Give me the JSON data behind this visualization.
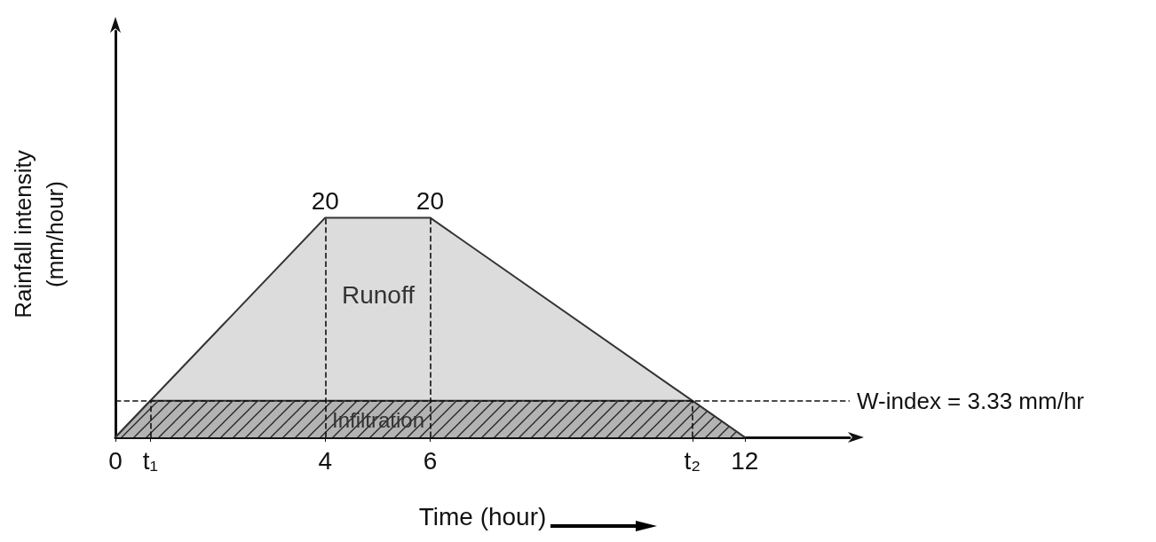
{
  "chart_data": {
    "type": "area",
    "xlabel": "Time (hour)",
    "ylabel": "Rainfall intensity\n(mm/hour)",
    "x": [
      0,
      4,
      6,
      12
    ],
    "series": [
      {
        "color": "#dcdcdc",
        "values": [
          0,
          20,
          20,
          0
        ],
        "value_labels": [
          null,
          "20",
          "20",
          null
        ]
      },
      {
        "color": "#b3b3b3",
        "x": [
          0,
          0.667,
          11,
          12
        ],
        "values": [
          0,
          3.33,
          3.33,
          0
        ]
      }
    ],
    "xlim": [
      0,
      14
    ],
    "ylim": [
      0,
      37
    ],
    "xticks": [
      0,
      {
        "value": 0.667,
        "label": "t₁"
      },
      4,
      6,
      {
        "value": 11,
        "label": "t₂"
      },
      12
    ],
    "tick_labels": "x",
    "grid": false,
    "marker": "none",
    "ref_lines": [
      {
        "axis": "y",
        "value": 3.33,
        "label": "W-index = 3.33 mm/hr",
        "line_style": "dashed"
      },
      {
        "axis": "x",
        "value": 0.667,
        "line_style": "dashed"
      },
      {
        "axis": "x",
        "value": 4,
        "line_style": "dashed"
      },
      {
        "axis": "x",
        "value": 6,
        "line_style": "dashed"
      },
      {
        "axis": "x",
        "value": 11,
        "line_style": "dashed"
      }
    ],
    "annotations": [
      "Runoff",
      "Infiltration"
    ]
  }
}
